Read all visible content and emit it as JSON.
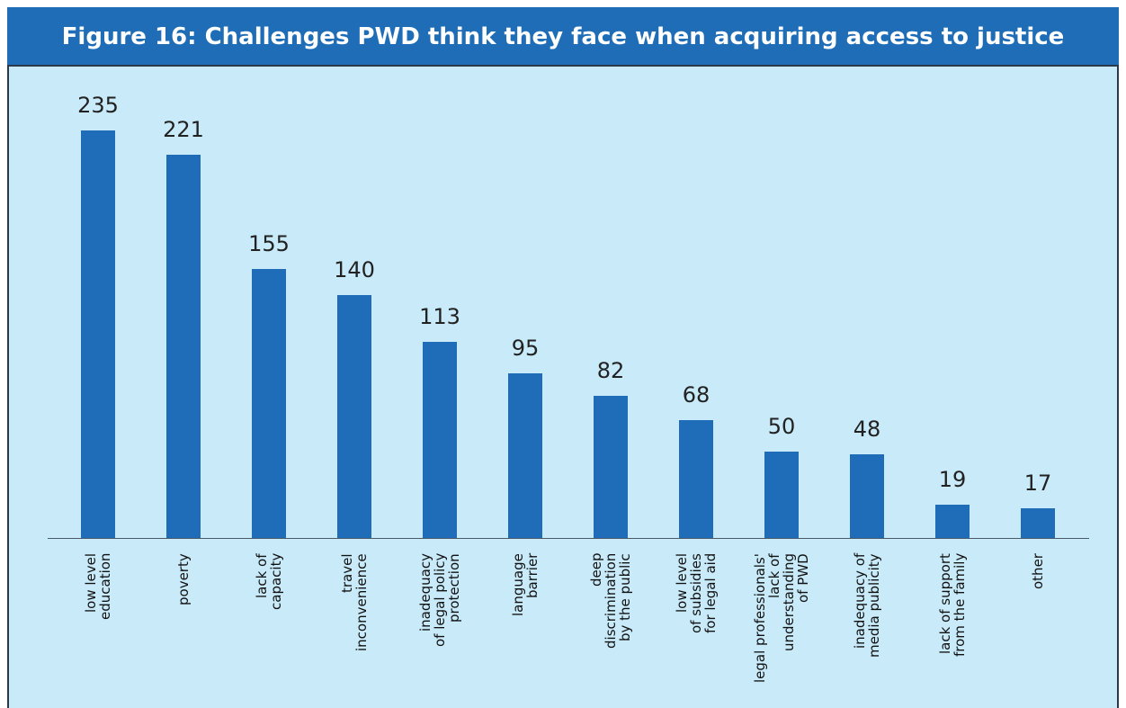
{
  "chart_data": {
    "type": "bar",
    "title": "Figure 16: Challenges PWD think they face when acquiring access to justice",
    "categories": [
      "low level\neducation",
      "poverty",
      "lack of\ncapacity",
      "travel\ninconvenience",
      "inadequacy\nof legal policy\nprotection",
      "language\nbarrier",
      "deep\ndiscrimination\nby the public",
      "low level\nof subsidies\nfor legal aid",
      "legal professionals'\nlack of\nunderstanding\nof PWD",
      "inadequacy of\nmedia publicity",
      "lack of support\nfrom the family",
      "other"
    ],
    "values": [
      235,
      221,
      155,
      140,
      113,
      95,
      82,
      68,
      50,
      48,
      19,
      17
    ],
    "color": "#1f6db8"
  }
}
